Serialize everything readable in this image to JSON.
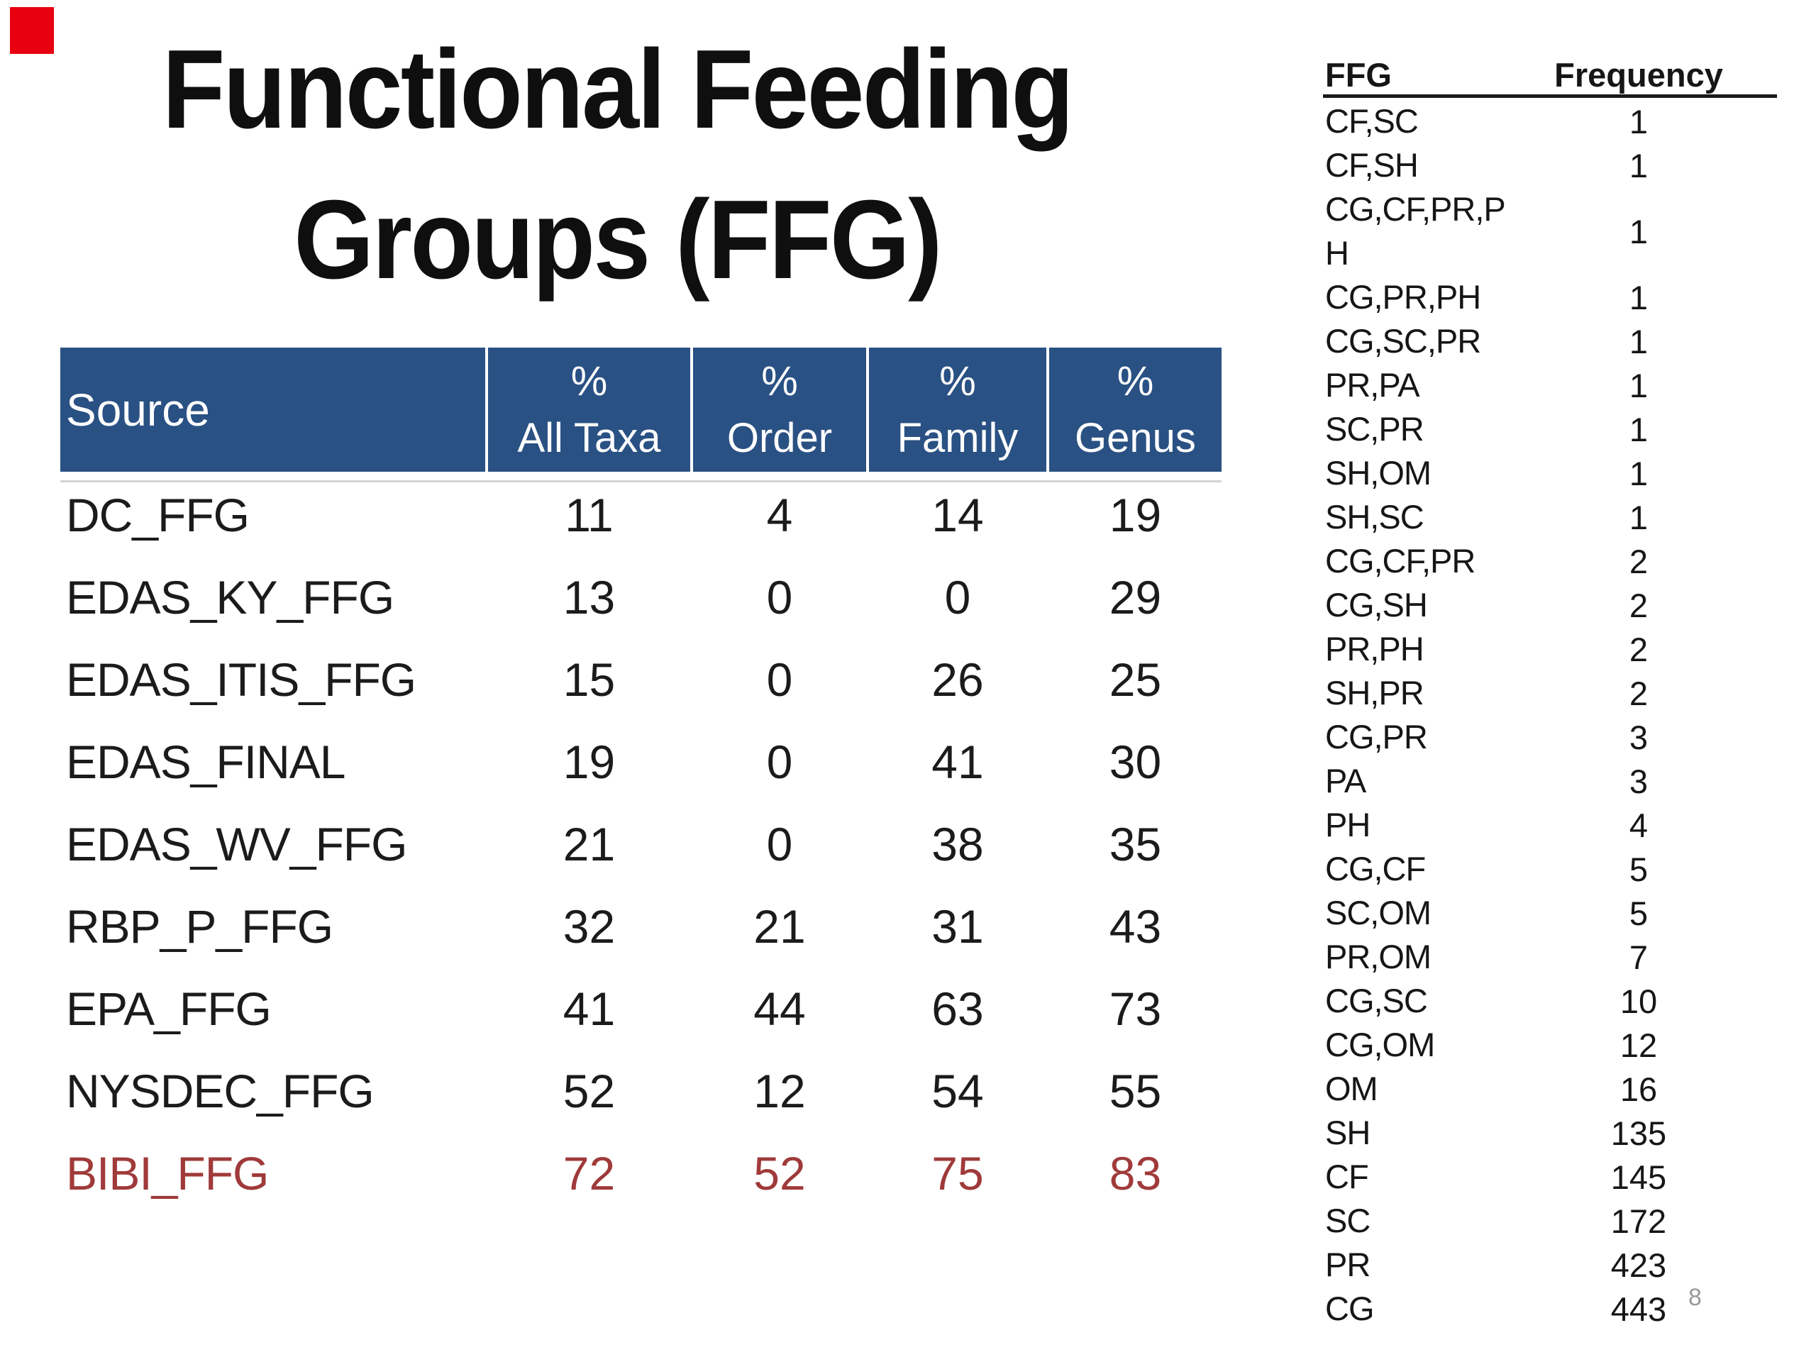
{
  "slide": {
    "title_line1": "Functional Feeding",
    "title_line2": "Groups (FFG)",
    "page_number": "8"
  },
  "colors": {
    "header_bg": "#2a5183",
    "header_text": "#ffffff",
    "highlight_row": "#a03a3a",
    "corner_marker": "#e80010",
    "divider": "#d4d4d4",
    "page_number_gray": "#999999"
  },
  "main_table": {
    "header": {
      "source": "Source",
      "cols": [
        {
          "l1": "%",
          "l2": "All Taxa"
        },
        {
          "l1": "%",
          "l2": "Order"
        },
        {
          "l1": "%",
          "l2": "Family"
        },
        {
          "l1": "%",
          "l2": "Genus"
        }
      ]
    },
    "rows": [
      {
        "source": "DC_FFG",
        "all_taxa": "11",
        "order": "4",
        "family": "14",
        "genus": "19"
      },
      {
        "source": "EDAS_KY_FFG",
        "all_taxa": "13",
        "order": "0",
        "family": "0",
        "genus": "29"
      },
      {
        "source": "EDAS_ITIS_FFG",
        "all_taxa": "15",
        "order": "0",
        "family": "26",
        "genus": "25"
      },
      {
        "source": "EDAS_FINAL",
        "all_taxa": "19",
        "order": "0",
        "family": "41",
        "genus": "30"
      },
      {
        "source": "EDAS_WV_FFG",
        "all_taxa": "21",
        "order": "0",
        "family": "38",
        "genus": "35"
      },
      {
        "source": "RBP_P_FFG",
        "all_taxa": "32",
        "order": "21",
        "family": "31",
        "genus": "43"
      },
      {
        "source": "EPA_FFG",
        "all_taxa": "41",
        "order": "44",
        "family": "63",
        "genus": "73"
      },
      {
        "source": "NYSDEC_FFG",
        "all_taxa": "52",
        "order": "12",
        "family": "54",
        "genus": "55"
      },
      {
        "source": "BIBI_FFG",
        "all_taxa": "72",
        "order": "52",
        "family": "75",
        "genus": "83"
      }
    ]
  },
  "freq_table": {
    "header": {
      "ffg": "FFG",
      "frequency": "Frequency"
    },
    "rows": [
      {
        "ffg": "CF,SC",
        "freq": "1"
      },
      {
        "ffg": "CF,SH",
        "freq": "1"
      },
      {
        "ffg": "CG,CF,PR,P\nH",
        "freq": "1"
      },
      {
        "ffg": "CG,PR,PH",
        "freq": "1"
      },
      {
        "ffg": "CG,SC,PR",
        "freq": "1"
      },
      {
        "ffg": "PR,PA",
        "freq": "1"
      },
      {
        "ffg": "SC,PR",
        "freq": "1"
      },
      {
        "ffg": "SH,OM",
        "freq": "1"
      },
      {
        "ffg": "SH,SC",
        "freq": "1"
      },
      {
        "ffg": "CG,CF,PR",
        "freq": "2"
      },
      {
        "ffg": "CG,SH",
        "freq": "2"
      },
      {
        "ffg": "PR,PH",
        "freq": "2"
      },
      {
        "ffg": "SH,PR",
        "freq": "2"
      },
      {
        "ffg": "CG,PR",
        "freq": "3"
      },
      {
        "ffg": "PA",
        "freq": "3"
      },
      {
        "ffg": "PH",
        "freq": "4"
      },
      {
        "ffg": "CG,CF",
        "freq": "5"
      },
      {
        "ffg": "SC,OM",
        "freq": "5"
      },
      {
        "ffg": "PR,OM",
        "freq": "7"
      },
      {
        "ffg": "CG,SC",
        "freq": "10"
      },
      {
        "ffg": "CG,OM",
        "freq": "12"
      },
      {
        "ffg": "OM",
        "freq": "16"
      },
      {
        "ffg": "SH",
        "freq": "135"
      },
      {
        "ffg": "CF",
        "freq": "145"
      },
      {
        "ffg": "SC",
        "freq": "172"
      },
      {
        "ffg": "PR",
        "freq": "423"
      },
      {
        "ffg": "CG",
        "freq": "443"
      }
    ]
  }
}
